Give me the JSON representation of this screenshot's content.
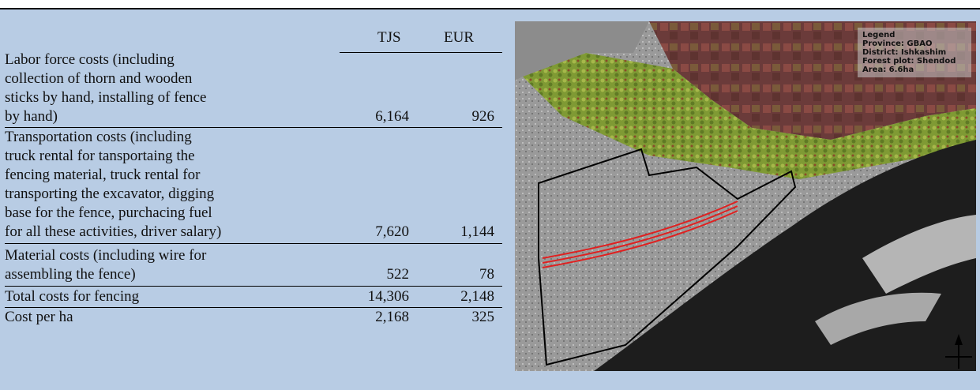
{
  "table": {
    "headers": {
      "tjs": "TJS",
      "eur": "EUR"
    },
    "rows": [
      {
        "label": "Labor force costs (including\ncollection of thorn and wooden\nsticks by hand, installing of fence\nby hand)",
        "tjs": "6,164",
        "eur": "926"
      },
      {
        "label": "Transportation costs (including\ntruck rental for tansportaing the\nfencing material, truck rental for\ntransporting the excavator, digging\nbase for the fence, purchacing fuel\nfor all these activities, driver salary)",
        "tjs": "7,620",
        "eur": "1,144"
      },
      {
        "label": "Material costs (including wire for\nassembling the fence)",
        "tjs": "522",
        "eur": "78"
      },
      {
        "label": "Total costs for fencing",
        "tjs": "14,306",
        "eur": "2,148"
      },
      {
        "label": "Cost per ha",
        "tjs": "2,168",
        "eur": "325"
      }
    ]
  },
  "map": {
    "legend": {
      "title": "Legend",
      "province": "Province: GBAO",
      "district": "District: Ishkashim",
      "forest_plot": "Forest plot: Shendod",
      "area": "Area: 6.6ha"
    },
    "colors": {
      "boundary": "#000000",
      "fence": "#e02020",
      "vegetation": "#7a9a2a",
      "fields": "#7a3a3a",
      "river": "#1a1a1a"
    },
    "icons": [
      "north-arrow-icon"
    ]
  }
}
